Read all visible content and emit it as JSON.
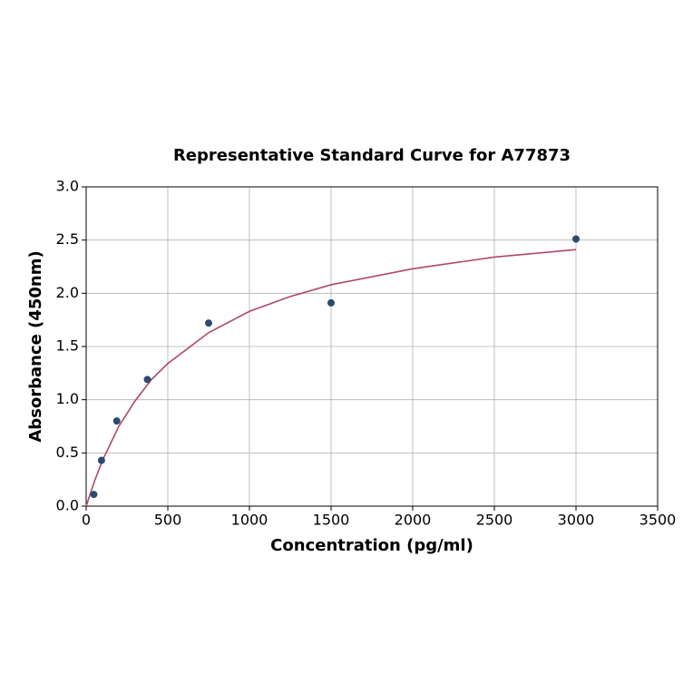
{
  "chart_data": {
    "type": "scatter",
    "title": "Representative Standard Curve for A77873",
    "x_label": "Concentration (pg/ml)",
    "y_label": "Absorbance (450nm)",
    "xlim": [
      0,
      3500
    ],
    "ylim": [
      0,
      3.0
    ],
    "xticks": [
      0,
      500,
      1000,
      1500,
      2000,
      2500,
      3000,
      3500
    ],
    "yticks": [
      {
        "value": 0,
        "label": "0.0"
      },
      0.5,
      {
        "value": 1,
        "label": "1.0"
      },
      1.5,
      {
        "value": 2,
        "label": "2.0"
      },
      2.5,
      {
        "value": 3,
        "label": "3.0"
      }
    ],
    "grid": true,
    "series": [
      {
        "style": "line",
        "color": "#b0476a",
        "x": [
          0,
          50,
          100,
          200,
          300,
          400,
          500,
          750,
          1000,
          1250,
          1500,
          2000,
          2500,
          3000
        ],
        "values": [
          0,
          0.23,
          0.43,
          0.75,
          0.99,
          1.19,
          1.34,
          1.63,
          1.83,
          1.97,
          2.08,
          2.23,
          2.34,
          2.41
        ]
      },
      {
        "style": "markers",
        "color": "#2e4a6e",
        "x": [
          46.875,
          93.75,
          187.5,
          375,
          750,
          1500,
          3000
        ],
        "values": [
          0.11,
          0.43,
          0.8,
          1.19,
          1.72,
          1.91,
          2.51
        ]
      }
    ]
  }
}
